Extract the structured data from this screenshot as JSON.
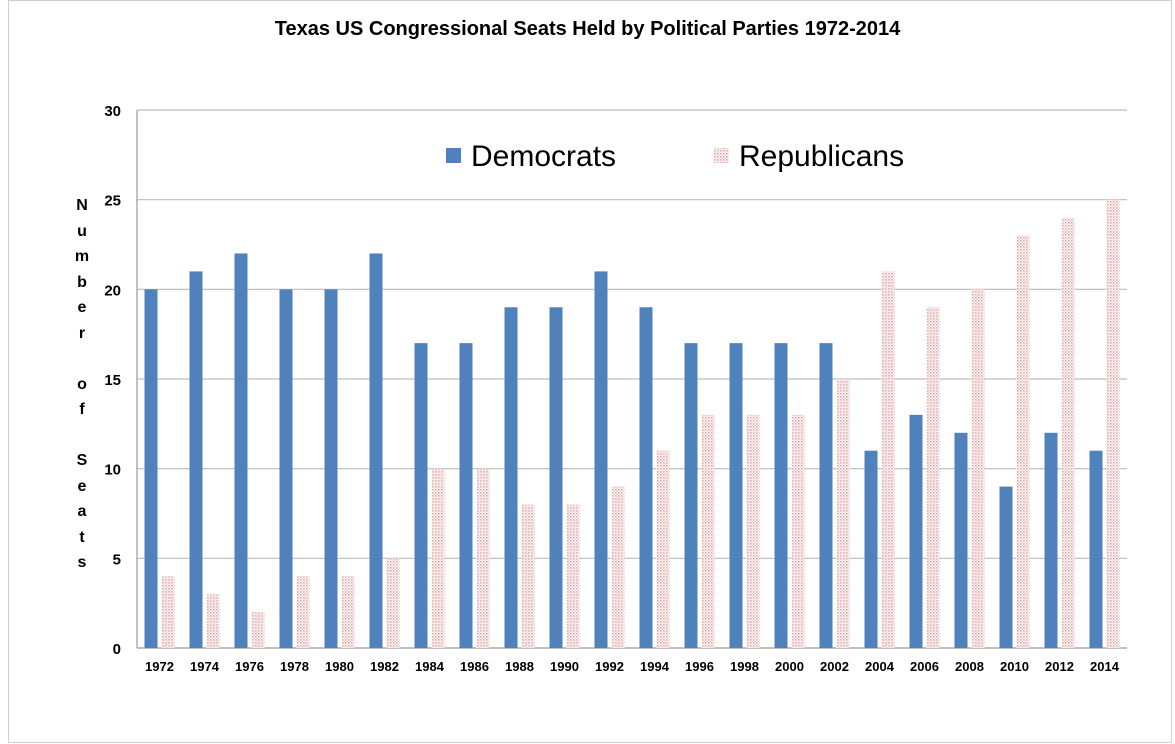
{
  "chart_data": {
    "type": "bar",
    "title": "Texas US Congressional Seats Held by Political Parties 1972-2014",
    "xlabel": "",
    "ylabel": "Number of Seats",
    "ylim": [
      0,
      30
    ],
    "yticks": [
      0,
      5,
      10,
      15,
      20,
      25,
      30
    ],
    "grid": true,
    "legend_position": "top",
    "categories": [
      "1972",
      "1974",
      "1976",
      "1978",
      "1980",
      "1982",
      "1984",
      "1986",
      "1988",
      "1990",
      "1992",
      "1994",
      "1996",
      "1998",
      "2000",
      "2002",
      "2004",
      "2006",
      "2008",
      "2010",
      "2012",
      "2014"
    ],
    "series": [
      {
        "name": "Democrats",
        "color": "#4f81bd",
        "values": [
          20,
          21,
          22,
          20,
          20,
          22,
          17,
          17,
          19,
          19,
          21,
          19,
          17,
          17,
          17,
          17,
          11,
          13,
          12,
          9,
          12,
          11
        ]
      },
      {
        "name": "Republicans",
        "color": "#f2c4c4",
        "values": [
          4,
          3,
          2,
          4,
          4,
          5,
          10,
          10,
          8,
          8,
          9,
          11,
          13,
          13,
          13,
          15,
          21,
          19,
          20,
          23,
          24,
          25
        ]
      }
    ]
  }
}
